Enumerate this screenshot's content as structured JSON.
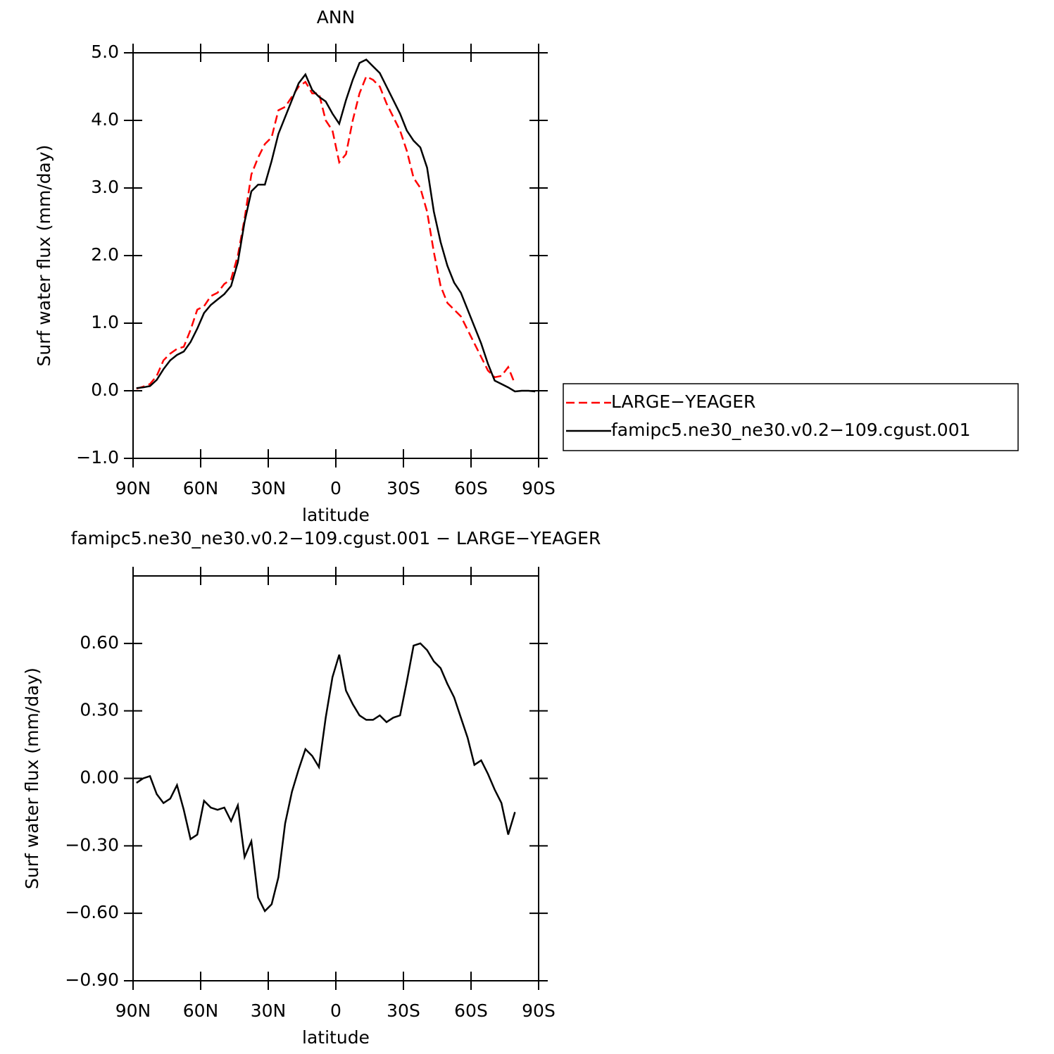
{
  "chart_data": [
    {
      "type": "line",
      "title": "ANN",
      "x_label": "latitude",
      "y_label": "Surf water flux (mm/day)",
      "x": [
        88.5,
        85.5,
        82.5,
        79.5,
        76.5,
        73.5,
        70.5,
        67.5,
        64.5,
        61.5,
        58.5,
        55.5,
        52.5,
        49.5,
        46.5,
        43.5,
        40.5,
        37.5,
        34.5,
        31.5,
        28.5,
        25.5,
        22.5,
        19.5,
        16.5,
        13.5,
        10.5,
        7.5,
        4.5,
        1.5,
        -1.5,
        -4.5,
        -7.5,
        -10.5,
        -13.5,
        -16.5,
        -19.5,
        -22.5,
        -25.5,
        -28.5,
        -31.5,
        -34.5,
        -37.5,
        -40.5,
        -43.5,
        -46.5,
        -49.5,
        -52.5,
        -55.5,
        -58.5,
        -61.5,
        -64.5,
        -67.5,
        -70.5,
        -73.5,
        -76.5,
        -79.5,
        -82.5,
        -85.5,
        -88.5
      ],
      "xlim": [
        90,
        -90
      ],
      "xticks": [
        {
          "value": 90,
          "label": "90N"
        },
        {
          "value": 60,
          "label": "60N"
        },
        {
          "value": 30,
          "label": "30N"
        },
        0,
        {
          "value": -30,
          "label": "30S"
        },
        {
          "value": -60,
          "label": "60S"
        },
        {
          "value": -90,
          "label": "90S"
        }
      ],
      "ylim": [
        -1,
        5
      ],
      "yticks": [
        {
          "value": -1,
          "label": "−1.0"
        },
        {
          "value": 0,
          "label": "0.0"
        },
        {
          "value": 1,
          "label": "1.0"
        },
        {
          "value": 2,
          "label": "2.0"
        },
        {
          "value": 3,
          "label": "3.0"
        },
        {
          "value": 4,
          "label": "4.0"
        },
        {
          "value": 5,
          "label": "5.0"
        }
      ],
      "legend": "right",
      "series": [
        {
          "name": "LARGE−YEAGER",
          "color": "#ff0000",
          "linestyle": "dashed",
          "values": [
            0.03,
            0.06,
            0.1,
            0.22,
            0.45,
            0.55,
            0.62,
            0.65,
            0.9,
            1.2,
            1.25,
            1.4,
            1.45,
            1.58,
            1.65,
            2.0,
            2.55,
            3.2,
            3.45,
            3.65,
            3.75,
            4.15,
            4.2,
            4.35,
            4.5,
            4.57,
            4.4,
            4.4,
            4.0,
            3.85,
            3.38,
            3.5,
            4.0,
            4.4,
            4.65,
            4.6,
            4.5,
            4.25,
            4.05,
            3.85,
            3.55,
            3.15,
            3.0,
            2.65,
            2.05,
            1.55,
            1.3,
            1.2,
            1.1,
            0.9,
            0.7,
            0.5,
            0.3,
            0.2,
            0.22,
            0.35,
            0.1,
            null,
            null,
            null
          ]
        },
        {
          "name": "famipc5.ne30_ne30.v0.2−109.cgust.001",
          "color": "#000000",
          "linestyle": "solid",
          "values": [
            0.04,
            0.05,
            0.07,
            0.16,
            0.32,
            0.45,
            0.53,
            0.58,
            0.72,
            0.92,
            1.15,
            1.27,
            1.35,
            1.43,
            1.55,
            1.9,
            2.5,
            2.95,
            3.05,
            3.05,
            3.4,
            3.8,
            4.05,
            4.3,
            4.55,
            4.68,
            4.45,
            4.35,
            4.28,
            4.1,
            3.95,
            4.3,
            4.6,
            4.85,
            4.9,
            4.8,
            4.7,
            4.5,
            4.3,
            4.1,
            3.85,
            3.7,
            3.6,
            3.3,
            2.65,
            2.2,
            1.85,
            1.6,
            1.45,
            1.2,
            0.95,
            0.7,
            0.4,
            0.15,
            0.1,
            0.05,
            -0.01,
            0.0,
            0.0,
            -0.01
          ]
        }
      ]
    },
    {
      "type": "line",
      "title": "famipc5.ne30_ne30.v0.2−109.cgust.001  −  LARGE−YEAGER",
      "x_label": "latitude",
      "y_label": "Surf water flux (mm/day)",
      "x": [
        88.5,
        85.5,
        82.5,
        79.5,
        76.5,
        73.5,
        70.5,
        67.5,
        64.5,
        61.5,
        58.5,
        55.5,
        52.5,
        49.5,
        46.5,
        43.5,
        40.5,
        37.5,
        34.5,
        31.5,
        28.5,
        25.5,
        22.5,
        19.5,
        16.5,
        13.5,
        10.5,
        7.5,
        4.5,
        1.5,
        -1.5,
        -4.5,
        -7.5,
        -10.5,
        -13.5,
        -16.5,
        -19.5,
        -22.5,
        -25.5,
        -28.5,
        -31.5,
        -34.5,
        -37.5,
        -40.5,
        -43.5,
        -46.5,
        -49.5,
        -52.5,
        -55.5,
        -58.5,
        -61.5,
        -64.5,
        -67.5,
        -70.5,
        -73.5,
        -76.5,
        -79.5,
        -82.5,
        -85.5,
        -88.5
      ],
      "xlim": [
        90,
        -90
      ],
      "xticks": [
        {
          "value": 90,
          "label": "90N"
        },
        {
          "value": 60,
          "label": "60N"
        },
        {
          "value": 30,
          "label": "30N"
        },
        0,
        {
          "value": -30,
          "label": "30S"
        },
        {
          "value": -60,
          "label": "60S"
        },
        {
          "value": -90,
          "label": "90S"
        }
      ],
      "ylim": [
        -0.9,
        0.9
      ],
      "yticks": [
        {
          "value": -0.9,
          "label": "−0.90"
        },
        {
          "value": -0.6,
          "label": "−0.60"
        },
        {
          "value": -0.3,
          "label": "−0.30"
        },
        {
          "value": 0,
          "label": "0.00"
        },
        {
          "value": 0.3,
          "label": "0.30"
        },
        {
          "value": 0.6,
          "label": "0.60"
        }
      ],
      "series": [
        {
          "color": "#000000",
          "linestyle": "solid",
          "values": [
            -0.02,
            0.0,
            0.01,
            -0.07,
            -0.11,
            -0.09,
            -0.03,
            -0.14,
            -0.27,
            -0.25,
            -0.1,
            -0.13,
            -0.14,
            -0.13,
            -0.19,
            -0.12,
            -0.35,
            -0.28,
            -0.53,
            -0.59,
            -0.56,
            -0.44,
            -0.2,
            -0.06,
            0.04,
            0.13,
            0.1,
            0.05,
            0.27,
            0.45,
            0.55,
            0.39,
            0.33,
            0.28,
            0.26,
            0.26,
            0.28,
            0.25,
            0.27,
            0.28,
            0.43,
            0.59,
            0.6,
            0.57,
            0.52,
            0.49,
            0.42,
            0.36,
            0.27,
            0.18,
            0.06,
            0.08,
            0.02,
            -0.05,
            -0.11,
            -0.25,
            -0.15,
            null,
            null,
            null
          ]
        }
      ]
    }
  ]
}
